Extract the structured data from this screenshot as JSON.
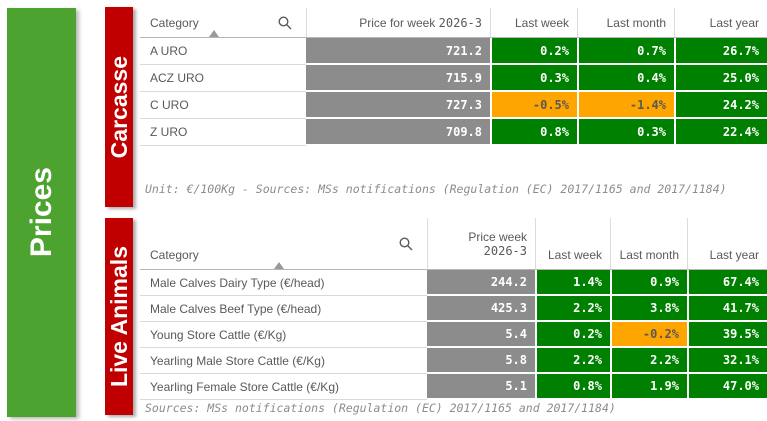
{
  "colors": {
    "sidebar_green": "#4DA32F",
    "banner_red": "#C00000",
    "positive_green": "#008000",
    "negative_orange": "#FFA500",
    "price_gray": "#8C8C8C",
    "positive_text": "#FFFFFF",
    "negative_text": "#595959"
  },
  "sidebar": {
    "label": "Prices"
  },
  "sections": [
    {
      "banner": "Carcasse",
      "table": {
        "header": {
          "category": "Category",
          "price_label": "Price for week",
          "price_week": "2026-3",
          "two_line_price": false,
          "pct_cols": [
            "Last week",
            "Last month",
            "Last year"
          ]
        },
        "rows": [
          {
            "category": "A URO",
            "price": "721.2",
            "pcts": [
              {
                "v": "0.2%",
                "t": "pos"
              },
              {
                "v": "0.7%",
                "t": "pos"
              },
              {
                "v": "26.7%",
                "t": "pos"
              }
            ]
          },
          {
            "category": "ACZ URO",
            "price": "715.9",
            "pcts": [
              {
                "v": "0.3%",
                "t": "pos"
              },
              {
                "v": "0.4%",
                "t": "pos"
              },
              {
                "v": "25.0%",
                "t": "pos"
              }
            ]
          },
          {
            "category": "C URO",
            "price": "727.3",
            "pcts": [
              {
                "v": "-0.5%",
                "t": "neg"
              },
              {
                "v": "-1.4%",
                "t": "neg"
              },
              {
                "v": "24.2%",
                "t": "pos"
              }
            ]
          },
          {
            "category": "Z URO",
            "price": "709.8",
            "pcts": [
              {
                "v": "0.8%",
                "t": "pos"
              },
              {
                "v": "0.3%",
                "t": "pos"
              },
              {
                "v": "22.4%",
                "t": "pos"
              }
            ]
          }
        ]
      },
      "footnote": "Unit: €/100Kg - Sources: MSs notifications (Regulation (EC) 2017/1165 and 2017/1184)"
    },
    {
      "banner": "Live Animals",
      "table": {
        "header": {
          "category": "Category",
          "price_label": "Price week",
          "price_week": "2026-3",
          "two_line_price": true,
          "pct_cols": [
            "Last week",
            "Last month",
            "Last year"
          ]
        },
        "rows": [
          {
            "category": "Male Calves Dairy Type (€/head)",
            "price": "244.2",
            "pcts": [
              {
                "v": "1.4%",
                "t": "pos"
              },
              {
                "v": "0.9%",
                "t": "pos"
              },
              {
                "v": "67.4%",
                "t": "pos"
              }
            ]
          },
          {
            "category": "Male Calves Beef Type (€/head)",
            "price": "425.3",
            "pcts": [
              {
                "v": "2.2%",
                "t": "pos"
              },
              {
                "v": "3.8%",
                "t": "pos"
              },
              {
                "v": "41.7%",
                "t": "pos"
              }
            ]
          },
          {
            "category": "Young Store Cattle (€/Kg)",
            "price": "5.4",
            "pcts": [
              {
                "v": "0.2%",
                "t": "pos"
              },
              {
                "v": "-0.2%",
                "t": "neg"
              },
              {
                "v": "39.5%",
                "t": "pos"
              }
            ]
          },
          {
            "category": "Yearling Male Store Cattle (€/Kg)",
            "price": "5.8",
            "pcts": [
              {
                "v": "2.2%",
                "t": "pos"
              },
              {
                "v": "2.2%",
                "t": "pos"
              },
              {
                "v": "32.1%",
                "t": "pos"
              }
            ]
          },
          {
            "category": "Yearling Female Store Cattle (€/Kg)",
            "price": "5.1",
            "pcts": [
              {
                "v": "0.8%",
                "t": "pos"
              },
              {
                "v": "1.9%",
                "t": "pos"
              },
              {
                "v": "47.0%",
                "t": "pos"
              }
            ]
          }
        ]
      },
      "footnote": "Sources: MSs notifications (Regulation (EC) 2017/1165 and 2017/1184)"
    }
  ]
}
